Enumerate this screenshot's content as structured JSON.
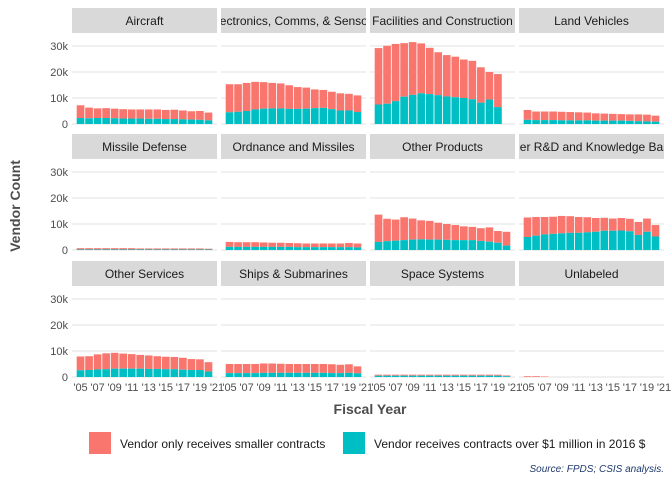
{
  "chart_data": {
    "type": "bar",
    "stacked": true,
    "facet_layout": "4 columns x 3 rows, shared axes",
    "ylabel": "Vendor Count",
    "xlabel": "Fiscal Year",
    "ylim": [
      0,
      35000
    ],
    "y_ticks": [
      0,
      10000,
      20000,
      30000
    ],
    "y_tick_labels": [
      "0",
      "10k",
      "20k",
      "30k"
    ],
    "x_tick_labels": [
      "'05",
      "'07",
      "'09",
      "'11",
      "'13",
      "'15",
      "'17",
      "'19",
      "'21"
    ],
    "years": [
      2005,
      2006,
      2007,
      2008,
      2009,
      2010,
      2011,
      2012,
      2013,
      2014,
      2015,
      2016,
      2017,
      2018,
      2019,
      2020
    ],
    "grid": true,
    "legend_position": "bottom",
    "legend": [
      {
        "key": "small",
        "label": "Vendor only receives smaller contracts",
        "color": "#F8766D"
      },
      {
        "key": "large",
        "label": "Vendor receives contracts over $1 million in 2016 $",
        "color": "#00BFC4"
      }
    ],
    "source_note": "Source: FPDS; CSIS analysis.",
    "panels": [
      {
        "title": "Aircraft",
        "large": [
          2300,
          2200,
          2300,
          2300,
          2200,
          2100,
          2100,
          2100,
          2000,
          2000,
          1900,
          1900,
          1800,
          1700,
          1600,
          1400
        ],
        "total": [
          7200,
          6300,
          6000,
          6100,
          5900,
          5700,
          5600,
          5600,
          5600,
          5600,
          5400,
          5500,
          5200,
          4900,
          5000,
          4400
        ]
      },
      {
        "title": "Electronics, Comms, & Sensors",
        "large": [
          4500,
          4700,
          5000,
          5600,
          5900,
          6000,
          6000,
          5800,
          5800,
          5900,
          6100,
          6200,
          5700,
          5200,
          5200,
          4600
        ],
        "total": [
          15300,
          15300,
          15800,
          16200,
          16100,
          15800,
          15600,
          14900,
          14200,
          14000,
          13300,
          13100,
          12400,
          11800,
          11600,
          11000
        ]
      },
      {
        "title": "Facilities and Construction",
        "large": [
          7500,
          7800,
          8800,
          10500,
          11200,
          11800,
          11500,
          11100,
          10600,
          10300,
          10000,
          9500,
          8200,
          9400,
          6500,
          null
        ],
        "total": [
          29200,
          30100,
          30800,
          31100,
          31500,
          31000,
          29300,
          27600,
          26500,
          25900,
          24800,
          24300,
          21800,
          20000,
          19200,
          null
        ]
      },
      {
        "title": "Land Vehicles",
        "large": [
          1600,
          1500,
          1500,
          1500,
          1400,
          1400,
          1400,
          1400,
          1300,
          1300,
          1300,
          1300,
          1200,
          1100,
          1000,
          900
        ],
        "total": [
          5400,
          4800,
          4800,
          4800,
          4700,
          4600,
          4500,
          4400,
          4100,
          4000,
          3900,
          3800,
          3700,
          3700,
          3600,
          3200
        ]
      },
      {
        "title": "Missile Defense",
        "large": [
          200,
          200,
          200,
          200,
          200,
          200,
          200,
          200,
          200,
          200,
          200,
          200,
          200,
          200,
          200,
          200
        ],
        "total": [
          700,
          700,
          700,
          700,
          700,
          700,
          700,
          600,
          600,
          600,
          600,
          600,
          600,
          600,
          600,
          500
        ]
      },
      {
        "title": "Ordnance and Missiles",
        "large": [
          1200,
          1200,
          1200,
          1200,
          1200,
          1200,
          1200,
          1200,
          1100,
          1100,
          1100,
          1100,
          1100,
          1100,
          1100,
          1000
        ],
        "total": [
          3100,
          3000,
          3000,
          3000,
          2900,
          2800,
          2800,
          2700,
          2600,
          2500,
          2500,
          2500,
          2500,
          2500,
          2700,
          2500
        ]
      },
      {
        "title": "Other Products",
        "large": [
          3100,
          3400,
          3600,
          3800,
          4000,
          4100,
          4000,
          4000,
          3900,
          3800,
          3800,
          3800,
          3500,
          3200,
          2800,
          1700
        ],
        "total": [
          13600,
          12000,
          11700,
          12600,
          12100,
          11400,
          11200,
          10500,
          10000,
          9600,
          9100,
          8900,
          8400,
          8700,
          7300,
          7000
        ]
      },
      {
        "title": "Other R&D and Knowledge Based",
        "large": [
          5000,
          5500,
          6000,
          6200,
          6400,
          6600,
          6600,
          6800,
          7000,
          7400,
          7400,
          7500,
          7200,
          5800,
          7000,
          5200
        ],
        "total": [
          12500,
          12700,
          12700,
          12800,
          13100,
          13000,
          12700,
          12600,
          12300,
          12400,
          12100,
          12300,
          12000,
          10800,
          12100,
          9600
        ]
      },
      {
        "title": "Other Services",
        "large": [
          2600,
          2700,
          2900,
          3000,
          3200,
          3200,
          3200,
          3200,
          3100,
          3100,
          3000,
          3000,
          2800,
          2700,
          2700,
          2100
        ],
        "total": [
          7900,
          8000,
          8700,
          9100,
          9300,
          9000,
          8800,
          8500,
          8300,
          8000,
          7800,
          7700,
          7400,
          6900,
          6800,
          5700
        ]
      },
      {
        "title": "Ships & Submarines",
        "large": [
          1500,
          1500,
          1500,
          1500,
          1600,
          1600,
          1600,
          1600,
          1600,
          1600,
          1600,
          1600,
          1500,
          1500,
          1600,
          1400
        ],
        "total": [
          5000,
          5000,
          5000,
          5000,
          5200,
          5200,
          5100,
          5000,
          5000,
          5000,
          5000,
          5000,
          4900,
          4700,
          4900,
          4100
        ]
      },
      {
        "title": "Space Systems",
        "large": [
          500,
          500,
          500,
          500,
          500,
          500,
          500,
          500,
          500,
          500,
          500,
          500,
          500,
          500,
          500,
          300
        ],
        "total": [
          900,
          900,
          900,
          900,
          900,
          900,
          900,
          900,
          900,
          900,
          900,
          900,
          900,
          900,
          900,
          600
        ]
      },
      {
        "title": "Unlabeled",
        "large": [
          0,
          0,
          0,
          0,
          0,
          0,
          0,
          0,
          0,
          0,
          0,
          0,
          0,
          0,
          0,
          0
        ],
        "total": [
          300,
          300,
          200,
          0,
          0,
          0,
          0,
          0,
          0,
          0,
          0,
          0,
          0,
          0,
          0,
          0
        ]
      }
    ]
  }
}
